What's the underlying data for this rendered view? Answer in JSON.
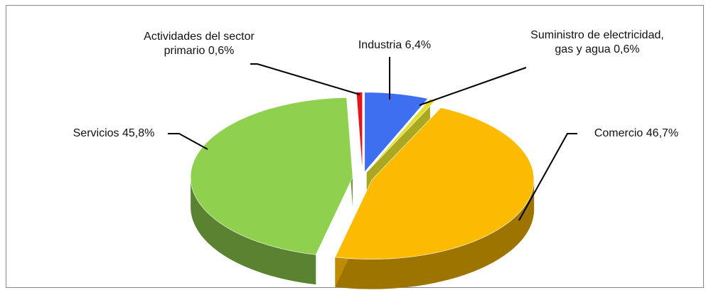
{
  "chart_data": {
    "type": "pie",
    "categories": [
      "Industria",
      "Suministro de electricidad, gas y agua",
      "Comercio",
      "Servicios",
      "Actividades del sector primario"
    ],
    "values": [
      6.4,
      0.6,
      46.7,
      45.8,
      0.6
    ],
    "value_labels": [
      "6,4%",
      "0,6%",
      "46,7%",
      "45,8%",
      "0,6%"
    ],
    "colors": [
      "#3d6ff0",
      "#e2df2a",
      "#fdbb00",
      "#8fd14f",
      "#e8141c"
    ]
  }
}
